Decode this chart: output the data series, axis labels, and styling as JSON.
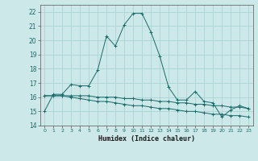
{
  "xlabel": "Humidex (Indice chaleur)",
  "ylabel": "",
  "background_color": "#cce8e8",
  "grid_color": "#aad4d4",
  "line_color": "#1a6b6b",
  "xlim": [
    -0.5,
    23.5
  ],
  "ylim": [
    14,
    22.5
  ],
  "yticks": [
    14,
    15,
    16,
    17,
    18,
    19,
    20,
    21,
    22
  ],
  "xticks": [
    0,
    1,
    2,
    3,
    4,
    5,
    6,
    7,
    8,
    9,
    10,
    11,
    12,
    13,
    14,
    15,
    16,
    17,
    18,
    19,
    20,
    21,
    22,
    23
  ],
  "series1_x": [
    0,
    1,
    2,
    3,
    4,
    5,
    6,
    7,
    8,
    9,
    10,
    11,
    12,
    13,
    14,
    15,
    16,
    17,
    18,
    19,
    20,
    21,
    22,
    23
  ],
  "series1_y": [
    15.0,
    16.2,
    16.2,
    16.9,
    16.8,
    16.8,
    17.9,
    20.3,
    19.6,
    21.1,
    21.9,
    21.9,
    20.6,
    18.9,
    16.7,
    15.8,
    15.8,
    16.4,
    15.7,
    15.6,
    14.6,
    15.1,
    15.4,
    15.2
  ],
  "series2_x": [
    0,
    1,
    2,
    3,
    4,
    5,
    6,
    7,
    8,
    9,
    10,
    11,
    12,
    13,
    14,
    15,
    16,
    17,
    18,
    19,
    20,
    21,
    22,
    23
  ],
  "series2_y": [
    16.1,
    16.1,
    16.1,
    16.1,
    16.1,
    16.1,
    16.0,
    16.0,
    16.0,
    15.9,
    15.9,
    15.8,
    15.8,
    15.7,
    15.7,
    15.6,
    15.6,
    15.5,
    15.5,
    15.4,
    15.4,
    15.3,
    15.3,
    15.2
  ],
  "series3_x": [
    0,
    1,
    2,
    3,
    4,
    5,
    6,
    7,
    8,
    9,
    10,
    11,
    12,
    13,
    14,
    15,
    16,
    17,
    18,
    19,
    20,
    21,
    22,
    23
  ],
  "series3_y": [
    16.1,
    16.1,
    16.1,
    16.0,
    15.9,
    15.8,
    15.7,
    15.7,
    15.6,
    15.5,
    15.4,
    15.4,
    15.3,
    15.2,
    15.2,
    15.1,
    15.0,
    15.0,
    14.9,
    14.8,
    14.8,
    14.7,
    14.7,
    14.6
  ]
}
